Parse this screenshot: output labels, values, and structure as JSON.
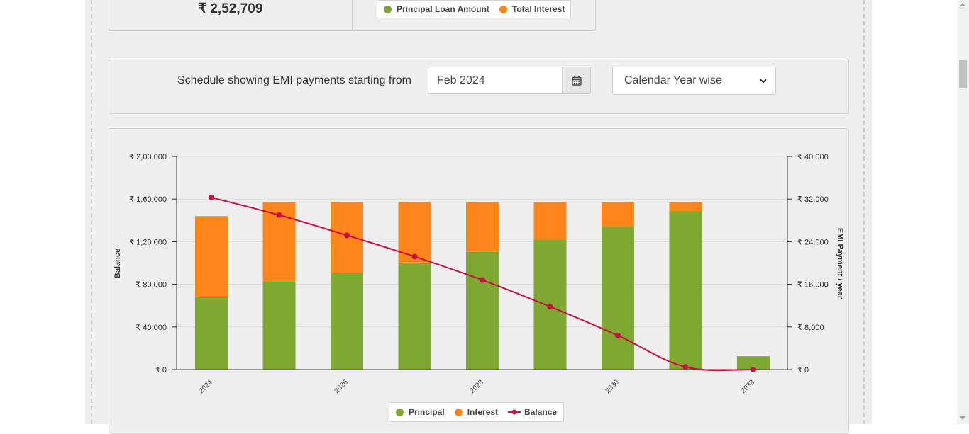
{
  "summary": {
    "total_payment": "₹ 2,52,709",
    "legend": [
      {
        "label": "Principal Loan Amount",
        "color": "#7ea830"
      },
      {
        "label": "Total Interest",
        "color": "#fd8519"
      }
    ]
  },
  "schedule": {
    "label": "Schedule showing EMI payments starting from",
    "start_value": "Feb 2024",
    "period_value": "Calendar Year wise"
  },
  "chart_data": {
    "type": "bar",
    "years": [
      "2024",
      "2025",
      "2026",
      "2027",
      "2028",
      "2029",
      "2030",
      "2031",
      "2032"
    ],
    "x_tick_labels": [
      "2024",
      "2026",
      "2028",
      "2030",
      "2032"
    ],
    "series": [
      {
        "name": "Principal",
        "axis": "right",
        "color": "#7ea830",
        "values": [
          13600,
          16500,
          18200,
          20100,
          22100,
          24400,
          26900,
          29700,
          2500
        ]
      },
      {
        "name": "Interest",
        "axis": "right",
        "color": "#fd8519",
        "values": [
          15200,
          15000,
          13300,
          11400,
          9400,
          7100,
          4600,
          1800,
          0
        ]
      },
      {
        "name": "Balance",
        "axis": "left",
        "type": "line",
        "color": "#cc0d44",
        "values": [
          161500,
          145000,
          126000,
          106000,
          84000,
          59000,
          32000,
          2500,
          0
        ]
      }
    ],
    "left_axis": {
      "label": "Balance",
      "range": [
        0,
        200000
      ],
      "ticks": [
        "₹ 0",
        "₹ 40,000",
        "₹ 80,000",
        "₹ 1,20,000",
        "₹ 1,60,000",
        "₹ 2,00,000"
      ]
    },
    "right_axis": {
      "label": "EMI Payment / year",
      "range": [
        0,
        40000
      ],
      "ticks": [
        "₹ 0",
        "₹ 8,000",
        "₹ 16,000",
        "₹ 24,000",
        "₹ 32,000",
        "₹ 40,000"
      ]
    },
    "legend": [
      {
        "label": "Principal",
        "color": "#7ea830"
      },
      {
        "label": "Interest",
        "color": "#fd8519"
      },
      {
        "label": "Balance",
        "color": "#cc0d44"
      }
    ],
    "legend_position": "bottom-center",
    "grid": true
  }
}
